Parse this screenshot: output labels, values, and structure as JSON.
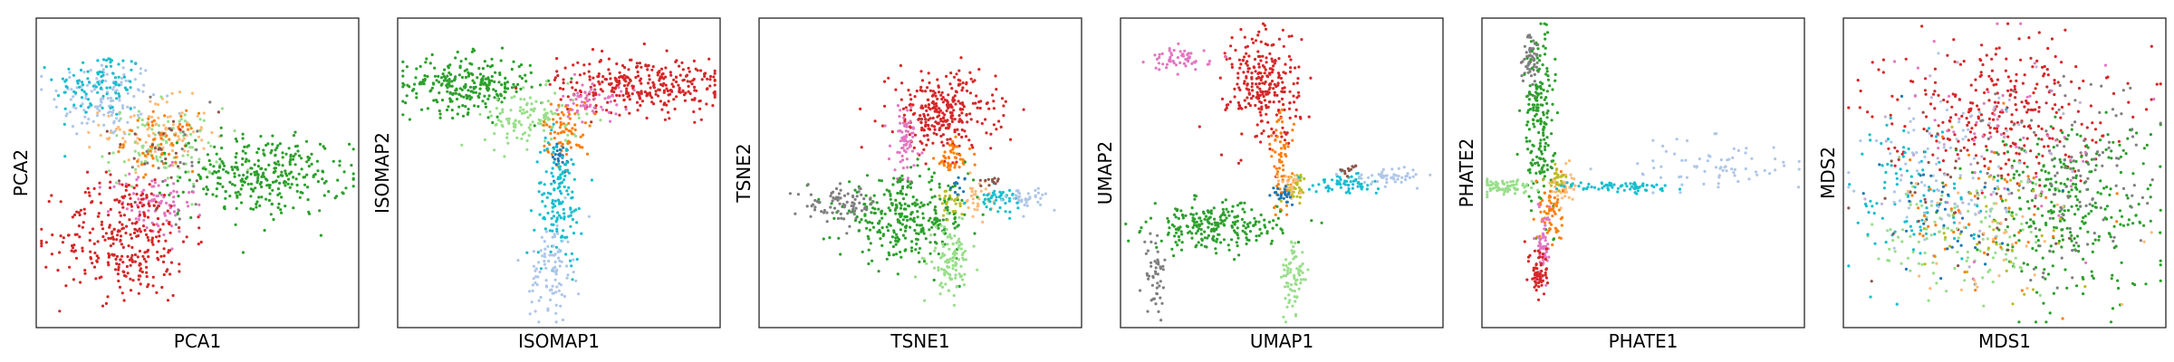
{
  "palette": {
    "blue": "#1f77b4",
    "orange": "#ff7f0e",
    "green": "#2ca02c",
    "red": "#d62728",
    "brown": "#8c564b",
    "pink": "#e377c2",
    "gray": "#7f7f7f",
    "olive": "#bcbd22",
    "cyan": "#17becf",
    "light_blue": "#aec7e8",
    "light_green": "#98df8a",
    "light_orange": "#ffbb78",
    "light_purple": "#c5b0d5"
  },
  "chart_data": [
    {
      "type": "scatter",
      "xlabel": "PCA1",
      "ylabel": "PCA2",
      "xticks": [],
      "yticks": [],
      "grid": false,
      "clusters": [
        {
          "color": "light_blue",
          "center": [
            -0.62,
            0.52
          ],
          "spread": [
            0.18,
            0.14
          ],
          "weight": 1.0
        },
        {
          "color": "cyan",
          "center": [
            -0.66,
            0.62
          ],
          "spread": [
            0.15,
            0.12
          ],
          "weight": 0.8
        },
        {
          "color": "light_orange",
          "center": [
            -0.28,
            0.28
          ],
          "spread": [
            0.18,
            0.12
          ],
          "weight": 0.8
        },
        {
          "color": "light_green",
          "center": [
            -0.22,
            0.18
          ],
          "spread": [
            0.2,
            0.14
          ],
          "weight": 0.8
        },
        {
          "color": "orange",
          "center": [
            -0.25,
            0.22
          ],
          "spread": [
            0.12,
            0.1
          ],
          "weight": 0.5
        },
        {
          "color": "green",
          "center": [
            0.45,
            -0.02
          ],
          "spread": [
            0.28,
            0.14
          ],
          "weight": 2.6
        },
        {
          "color": "pink",
          "center": [
            -0.3,
            -0.22
          ],
          "spread": [
            0.14,
            0.12
          ],
          "weight": 0.7
        },
        {
          "color": "red",
          "center": [
            -0.48,
            -0.45
          ],
          "spread": [
            0.22,
            0.22
          ],
          "weight": 2.6
        },
        {
          "color": "gray",
          "center": [
            -0.2,
            0.1
          ],
          "spread": [
            0.2,
            0.2
          ],
          "weight": 0.2
        },
        {
          "color": "brown",
          "center": [
            -0.25,
            0.15
          ],
          "spread": [
            0.2,
            0.18
          ],
          "weight": 0.2
        }
      ]
    },
    {
      "type": "scatter",
      "xlabel": "ISOMAP1",
      "ylabel": "ISOMAP2",
      "xticks": [],
      "yticks": [],
      "grid": false,
      "clusters": [
        {
          "color": "green",
          "center": [
            -0.62,
            0.62
          ],
          "spread": [
            0.22,
            0.1
          ],
          "weight": 2.2
        },
        {
          "color": "light_green",
          "center": [
            -0.18,
            0.38
          ],
          "spread": [
            0.16,
            0.1
          ],
          "weight": 1.0
        },
        {
          "color": "red",
          "center": [
            0.55,
            0.62
          ],
          "spread": [
            0.28,
            0.1
          ],
          "weight": 2.6
        },
        {
          "color": "pink",
          "center": [
            0.22,
            0.5
          ],
          "spread": [
            0.1,
            0.07
          ],
          "weight": 0.5
        },
        {
          "color": "orange",
          "center": [
            0.05,
            0.3
          ],
          "spread": [
            0.08,
            0.1
          ],
          "weight": 0.6
        },
        {
          "color": "blue",
          "center": [
            0.0,
            0.1
          ],
          "spread": [
            0.05,
            0.06
          ],
          "weight": 0.2
        },
        {
          "color": "cyan",
          "center": [
            0.0,
            -0.18
          ],
          "spread": [
            0.08,
            0.22
          ],
          "weight": 1.2
        },
        {
          "color": "light_blue",
          "center": [
            -0.05,
            -0.7
          ],
          "spread": [
            0.07,
            0.18
          ],
          "weight": 0.8
        }
      ]
    },
    {
      "type": "scatter",
      "xlabel": "TSNE1",
      "ylabel": "TSNE2",
      "xticks": [],
      "yticks": [],
      "grid": false,
      "clusters": [
        {
          "color": "red",
          "center": [
            0.15,
            0.42
          ],
          "spread": [
            0.18,
            0.14
          ],
          "weight": 2.4
        },
        {
          "color": "pink",
          "center": [
            -0.1,
            0.22
          ],
          "spread": [
            0.05,
            0.14
          ],
          "weight": 0.6
        },
        {
          "color": "orange",
          "center": [
            0.22,
            0.1
          ],
          "spread": [
            0.06,
            0.06
          ],
          "weight": 0.4
        },
        {
          "color": "green",
          "center": [
            -0.1,
            -0.32
          ],
          "spread": [
            0.22,
            0.14
          ],
          "weight": 2.6
        },
        {
          "color": "gray",
          "center": [
            -0.52,
            -0.22
          ],
          "spread": [
            0.12,
            0.06
          ],
          "weight": 0.7
        },
        {
          "color": "light_green",
          "center": [
            0.2,
            -0.62
          ],
          "spread": [
            0.07,
            0.12
          ],
          "weight": 0.9
        },
        {
          "color": "light_orange",
          "center": [
            0.38,
            -0.18
          ],
          "spread": [
            0.05,
            0.06
          ],
          "weight": 0.3
        },
        {
          "color": "olive",
          "center": [
            0.22,
            -0.22
          ],
          "spread": [
            0.04,
            0.05
          ],
          "weight": 0.2
        },
        {
          "color": "cyan",
          "center": [
            0.52,
            -0.18
          ],
          "spread": [
            0.08,
            0.04
          ],
          "weight": 0.4
        },
        {
          "color": "light_blue",
          "center": [
            0.72,
            -0.18
          ],
          "spread": [
            0.07,
            0.04
          ],
          "weight": 0.3
        },
        {
          "color": "brown",
          "center": [
            0.48,
            -0.06
          ],
          "spread": [
            0.03,
            0.02
          ],
          "weight": 0.1
        },
        {
          "color": "blue",
          "center": [
            0.25,
            -0.08
          ],
          "spread": [
            0.03,
            0.03
          ],
          "weight": 0.1
        }
      ]
    },
    {
      "type": "scatter",
      "xlabel": "UMAP1",
      "ylabel": "UMAP2",
      "xticks": [],
      "yticks": [],
      "grid": false,
      "clusters": [
        {
          "color": "red",
          "center": [
            -0.12,
            0.62
          ],
          "spread": [
            0.12,
            0.2
          ],
          "weight": 2.2
        },
        {
          "color": "pink",
          "center": [
            -0.68,
            0.8
          ],
          "spread": [
            0.1,
            0.04
          ],
          "weight": 0.5
        },
        {
          "color": "orange",
          "center": [
            0.0,
            0.05
          ],
          "spread": [
            0.04,
            0.18
          ],
          "weight": 0.6
        },
        {
          "color": "green",
          "center": [
            -0.45,
            -0.38
          ],
          "spread": [
            0.22,
            0.08
          ],
          "weight": 2.0
        },
        {
          "color": "gray",
          "center": [
            -0.85,
            -0.72
          ],
          "spread": [
            0.04,
            0.16
          ],
          "weight": 0.4
        },
        {
          "color": "light_green",
          "center": [
            0.08,
            -0.75
          ],
          "spread": [
            0.04,
            0.14
          ],
          "weight": 0.6
        },
        {
          "color": "olive",
          "center": [
            0.1,
            -0.1
          ],
          "spread": [
            0.04,
            0.05
          ],
          "weight": 0.3
        },
        {
          "color": "light_orange",
          "center": [
            0.05,
            -0.08
          ],
          "spread": [
            0.04,
            0.04
          ],
          "weight": 0.2
        },
        {
          "color": "blue",
          "center": [
            0.0,
            -0.15
          ],
          "spread": [
            0.03,
            0.03
          ],
          "weight": 0.2
        },
        {
          "color": "cyan",
          "center": [
            0.42,
            -0.08
          ],
          "spread": [
            0.12,
            0.03
          ],
          "weight": 0.5
        },
        {
          "color": "light_blue",
          "center": [
            0.72,
            -0.02
          ],
          "spread": [
            0.12,
            0.03
          ],
          "weight": 0.4
        },
        {
          "color": "brown",
          "center": [
            0.45,
            0.02
          ],
          "spread": [
            0.05,
            0.02
          ],
          "weight": 0.1
        }
      ]
    },
    {
      "type": "scatter",
      "xlabel": "PHATE1",
      "ylabel": "PHATE2",
      "xticks": [],
      "yticks": [],
      "grid": false,
      "clusters": [
        {
          "color": "gray",
          "center": [
            -0.75,
            0.82
          ],
          "spread": [
            0.03,
            0.1
          ],
          "weight": 0.5
        },
        {
          "color": "green",
          "center": [
            -0.7,
            0.35
          ],
          "spread": [
            0.05,
            0.3
          ],
          "weight": 1.6
        },
        {
          "color": "light_green",
          "center": [
            -0.92,
            -0.1
          ],
          "spread": [
            0.1,
            0.03
          ],
          "weight": 0.6
        },
        {
          "color": "light_orange",
          "center": [
            -0.55,
            -0.08
          ],
          "spread": [
            0.04,
            0.06
          ],
          "weight": 0.4
        },
        {
          "color": "olive",
          "center": [
            -0.58,
            -0.05
          ],
          "spread": [
            0.03,
            0.05
          ],
          "weight": 0.2
        },
        {
          "color": "orange",
          "center": [
            -0.62,
            -0.3
          ],
          "spread": [
            0.04,
            0.12
          ],
          "weight": 0.5
        },
        {
          "color": "pink",
          "center": [
            -0.67,
            -0.5
          ],
          "spread": [
            0.02,
            0.12
          ],
          "weight": 0.5
        },
        {
          "color": "red",
          "center": [
            -0.7,
            -0.7
          ],
          "spread": [
            0.03,
            0.1
          ],
          "weight": 0.5
        },
        {
          "color": "cyan",
          "center": [
            -0.15,
            -0.1
          ],
          "spread": [
            0.2,
            0.02
          ],
          "weight": 0.6
        },
        {
          "color": "light_blue",
          "center": [
            0.5,
            0.05
          ],
          "spread": [
            0.3,
            0.1
          ],
          "weight": 0.6
        }
      ]
    },
    {
      "type": "scatter",
      "xlabel": "MDS1",
      "ylabel": "MDS2",
      "xticks": [],
      "yticks": [],
      "grid": false,
      "clusters": [
        {
          "color": "red",
          "center": [
            -0.05,
            0.45
          ],
          "spread": [
            0.38,
            0.24
          ],
          "weight": 2.6
        },
        {
          "color": "green",
          "center": [
            0.42,
            -0.22
          ],
          "spread": [
            0.3,
            0.32
          ],
          "weight": 2.6
        },
        {
          "color": "gray",
          "center": [
            0.45,
            -0.05
          ],
          "spread": [
            0.3,
            0.36
          ],
          "weight": 1.0
        },
        {
          "color": "light_green",
          "center": [
            -0.3,
            -0.45
          ],
          "spread": [
            0.28,
            0.22
          ],
          "weight": 1.0
        },
        {
          "color": "cyan",
          "center": [
            -0.55,
            -0.15
          ],
          "spread": [
            0.24,
            0.28
          ],
          "weight": 0.8
        },
        {
          "color": "light_blue",
          "center": [
            -0.45,
            0.0
          ],
          "spread": [
            0.3,
            0.3
          ],
          "weight": 0.7
        },
        {
          "color": "pink",
          "center": [
            0.1,
            0.15
          ],
          "spread": [
            0.35,
            0.35
          ],
          "weight": 0.5
        },
        {
          "color": "orange",
          "center": [
            -0.2,
            -0.3
          ],
          "spread": [
            0.3,
            0.3
          ],
          "weight": 0.4
        },
        {
          "color": "brown",
          "center": [
            -0.3,
            -0.2
          ],
          "spread": [
            0.3,
            0.3
          ],
          "weight": 0.3
        },
        {
          "color": "olive",
          "center": [
            -0.1,
            -0.4
          ],
          "spread": [
            0.3,
            0.25
          ],
          "weight": 0.3
        },
        {
          "color": "blue",
          "center": [
            -0.4,
            -0.3
          ],
          "spread": [
            0.25,
            0.25
          ],
          "weight": 0.3
        },
        {
          "color": "light_orange",
          "center": [
            0.0,
            -0.4
          ],
          "spread": [
            0.3,
            0.25
          ],
          "weight": 0.3
        },
        {
          "color": "light_purple",
          "center": [
            -0.2,
            0.2
          ],
          "spread": [
            0.35,
            0.3
          ],
          "weight": 0.3
        }
      ]
    }
  ]
}
